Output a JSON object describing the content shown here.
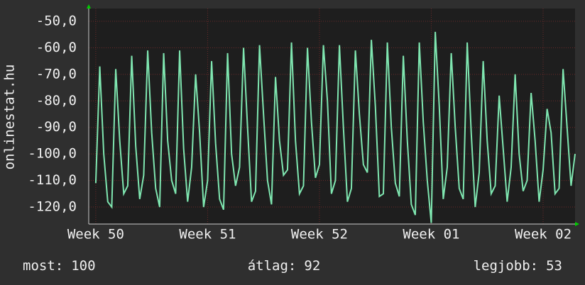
{
  "chart_data": {
    "type": "line",
    "y_label": "onlinestat.hu",
    "x": [
      0,
      0.25,
      0.5,
      0.75,
      1,
      1.25,
      1.5,
      1.75,
      2,
      2.25,
      2.5,
      2.75,
      3,
      3.25,
      3.5,
      3.75,
      4,
      4.25,
      4.5,
      4.75,
      5,
      5.25,
      5.5,
      5.75,
      6,
      6.25,
      6.5,
      6.75,
      7,
      7.25,
      7.5,
      7.75,
      8,
      8.25,
      8.5,
      8.75,
      9,
      9.25,
      9.5,
      9.75,
      10,
      10.25,
      10.5,
      10.75,
      11,
      11.25,
      11.5,
      11.75,
      12,
      12.25,
      12.5,
      12.75,
      13,
      13.25,
      13.5,
      13.75,
      14,
      14.25,
      14.5,
      14.75,
      15,
      15.25,
      15.5,
      15.75,
      16,
      16.25,
      16.5,
      16.75,
      17,
      17.25,
      17.5,
      17.75,
      18,
      18.25,
      18.5,
      18.75,
      19,
      19.25,
      19.5,
      19.75,
      20,
      20.25,
      20.5,
      20.75,
      21,
      21.25,
      21.5,
      21.75,
      22,
      22.25,
      22.5,
      22.75,
      23,
      23.25,
      23.5,
      23.75,
      24,
      24.25,
      24.5,
      24.75,
      25,
      25.25,
      25.5,
      25.75,
      26,
      26.25,
      26.5,
      26.75,
      27,
      27.25,
      27.5,
      27.75,
      28,
      28.25,
      28.5,
      28.75,
      29,
      29.25,
      29.5,
      29.75,
      30
    ],
    "series": [
      {
        "color": "#7fe6b0",
        "values": [
          -111,
          -67,
          -100,
          -118,
          -120,
          -68,
          -95,
          -115,
          -112,
          -63,
          -97,
          -117,
          -108,
          -61,
          -92,
          -113,
          -120,
          -62,
          -95,
          -110,
          -115,
          -61,
          -98,
          -118,
          -105,
          -70,
          -92,
          -120,
          -110,
          -65,
          -96,
          -117,
          -121,
          -62,
          -100,
          -112,
          -105,
          -60,
          -90,
          -118,
          -114,
          -59,
          -85,
          -110,
          -119,
          -71,
          -95,
          -108,
          -106,
          -58,
          -95,
          -115,
          -112,
          -60,
          -88,
          -109,
          -104,
          -59,
          -80,
          -115,
          -110,
          -59,
          -90,
          -118,
          -113,
          -61,
          -85,
          -104,
          -107,
          -57,
          -82,
          -116,
          -115,
          -58,
          -90,
          -111,
          -116,
          -63,
          -95,
          -119,
          -123,
          -58,
          -88,
          -110,
          -126,
          -54,
          -82,
          -117,
          -105,
          -62,
          -90,
          -113,
          -117,
          -58,
          -92,
          -120,
          -107,
          -65,
          -95,
          -115,
          -112,
          -78,
          -98,
          -118,
          -105,
          -70,
          -100,
          -114,
          -110,
          -77,
          -95,
          -118,
          -106,
          -83,
          -92,
          -115,
          -113,
          -68,
          -90,
          -112,
          -100
        ]
      }
    ],
    "xlim": [
      -0.44,
      30
    ],
    "xticks": [
      {
        "value": 0,
        "label": "Week 50"
      },
      {
        "value": 7,
        "label": "Week 51"
      },
      {
        "value": 14,
        "label": "Week 52"
      },
      {
        "value": 21,
        "label": "Week 01"
      },
      {
        "value": 28,
        "label": "Week 02"
      }
    ],
    "ylim": [
      -126.4,
      -45.2
    ],
    "yticks": [
      {
        "value": -50,
        "label": "-50,0"
      },
      {
        "value": -60,
        "label": "-60,0"
      },
      {
        "value": -70,
        "label": "-70,0"
      },
      {
        "value": -80,
        "label": "-80,0"
      },
      {
        "value": -90,
        "label": "-90,0"
      },
      {
        "value": -100,
        "label": "-100,0"
      },
      {
        "value": -110,
        "label": "-110,0"
      },
      {
        "value": -120,
        "label": "-120,0"
      }
    ],
    "grid": true,
    "footer": [
      {
        "label": "most:",
        "value": 100
      },
      {
        "label": "átlag:",
        "value": 92
      },
      {
        "label": "legjobb:",
        "value": 53
      }
    ]
  }
}
